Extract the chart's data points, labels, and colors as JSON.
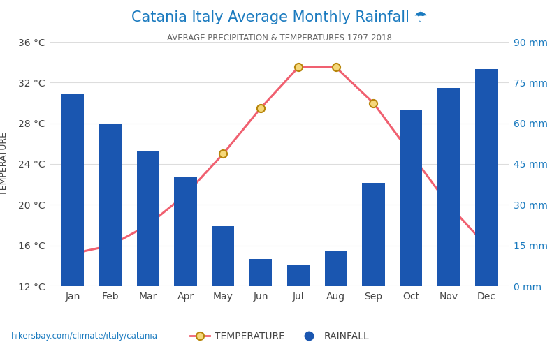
{
  "title": "Catania Italy Average Monthly Rainfall ☂",
  "subtitle": "AVERAGE PRECIPITATION & TEMPERATURES 1797-2018",
  "months": [
    "Jan",
    "Feb",
    "Mar",
    "Apr",
    "May",
    "Jun",
    "Jul",
    "Aug",
    "Sep",
    "Oct",
    "Nov",
    "Dec"
  ],
  "rainfall_mm": [
    71,
    60,
    50,
    40,
    22,
    10,
    8,
    13,
    38,
    65,
    73,
    80
  ],
  "temperature_c": [
    15.2,
    16.0,
    18.0,
    21.0,
    25.0,
    29.5,
    33.5,
    33.5,
    30.0,
    25.0,
    20.0,
    16.0
  ],
  "bar_color": "#1a56b0",
  "line_color": "#f06070",
  "marker_face": "#f5d87a",
  "marker_edge": "#b8860b",
  "title_color": "#1a7abf",
  "subtitle_color": "#666666",
  "axis_label_color": "#1a7abf",
  "left_tick_color": "#444444",
  "right_tick_color": "#1a7abf",
  "temp_ylim": [
    12,
    36
  ],
  "temp_yticks": [
    12,
    16,
    20,
    24,
    28,
    32,
    36
  ],
  "rain_ylim": [
    0,
    90
  ],
  "rain_yticks": [
    0,
    15,
    30,
    45,
    60,
    75,
    90
  ],
  "footer_text": "hikersbay.com/climate/italy/catania",
  "background_color": "#ffffff",
  "grid_color": "#dddddd"
}
